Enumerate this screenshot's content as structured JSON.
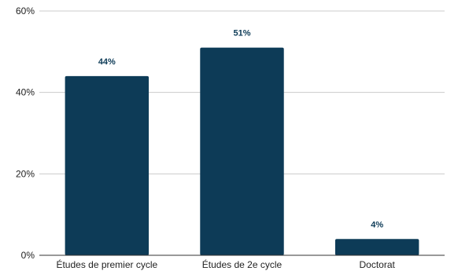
{
  "chart_data": {
    "type": "bar",
    "categories": [
      "Études de premier cycle",
      "Études de 2e cycle",
      "Doctorat"
    ],
    "values": [
      44,
      51,
      4
    ],
    "data_labels": [
      "44%",
      "51%",
      "4%"
    ],
    "y_ticks": [
      "0%",
      "20%",
      "40%",
      "60%"
    ],
    "ylim": [
      0,
      60
    ],
    "grid": true,
    "legend": "none",
    "bar_color": "#0d3b57",
    "label_color": "#0d3b57"
  }
}
